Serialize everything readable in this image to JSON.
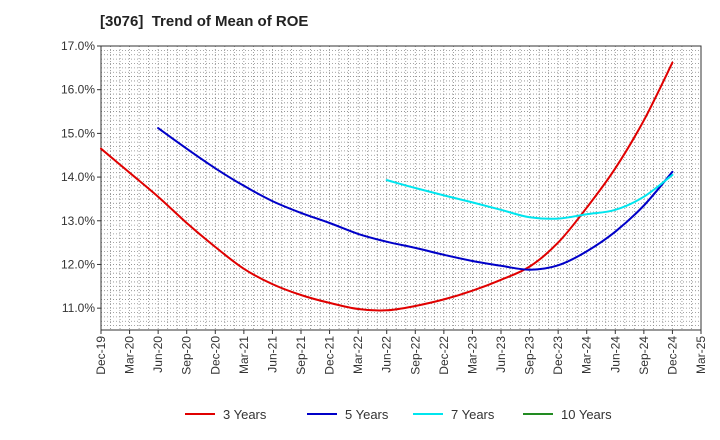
{
  "title": "[3076]  Trend of Mean of ROE",
  "chart_data": {
    "type": "line",
    "title": "[3076]  Trend of Mean of ROE",
    "xlabel": "",
    "ylabel": "",
    "x_tick_labels": [
      "Dec-19",
      "Mar-20",
      "Jun-20",
      "Sep-20",
      "Dec-20",
      "Mar-21",
      "Jun-21",
      "Sep-21",
      "Dec-21",
      "Mar-22",
      "Jun-22",
      "Sep-22",
      "Dec-22",
      "Mar-23",
      "Jun-23",
      "Sep-23",
      "Dec-23",
      "Mar-24",
      "Jun-24",
      "Sep-24",
      "Dec-24",
      "Mar-25"
    ],
    "y_ticks": [
      11.0,
      12.0,
      13.0,
      14.0,
      15.0,
      16.0,
      17.0
    ],
    "y_tick_labels": [
      "11.0%",
      "12.0%",
      "13.0%",
      "14.0%",
      "15.0%",
      "16.0%",
      "17.0%"
    ],
    "ylim": [
      10.5,
      17.0
    ],
    "grid": true,
    "legend_position": "bottom",
    "series": [
      {
        "name": "3 Years",
        "color": "#e00000",
        "points": [
          [
            "Dec-19",
            14.65
          ],
          [
            "Mar-20",
            14.1
          ],
          [
            "Jun-20",
            13.55
          ],
          [
            "Sep-20",
            12.95
          ],
          [
            "Dec-20",
            12.4
          ],
          [
            "Mar-21",
            11.9
          ],
          [
            "Jun-21",
            11.55
          ],
          [
            "Sep-21",
            11.3
          ],
          [
            "Dec-21",
            11.12
          ],
          [
            "Mar-22",
            10.98
          ],
          [
            "Jun-22",
            10.95
          ],
          [
            "Sep-22",
            11.05
          ],
          [
            "Dec-22",
            11.2
          ],
          [
            "Mar-23",
            11.4
          ],
          [
            "Jun-23",
            11.65
          ],
          [
            "Sep-23",
            11.95
          ],
          [
            "Dec-23",
            12.5
          ],
          [
            "Mar-24",
            13.3
          ],
          [
            "Jun-24",
            14.2
          ],
          [
            "Sep-24",
            15.3
          ],
          [
            "Dec-24",
            16.62
          ]
        ]
      },
      {
        "name": "5 Years",
        "color": "#0000c8",
        "points": [
          [
            "Jun-20",
            15.12
          ],
          [
            "Sep-20",
            14.65
          ],
          [
            "Dec-20",
            14.2
          ],
          [
            "Mar-21",
            13.8
          ],
          [
            "Jun-21",
            13.45
          ],
          [
            "Sep-21",
            13.18
          ],
          [
            "Dec-21",
            12.95
          ],
          [
            "Mar-22",
            12.7
          ],
          [
            "Jun-22",
            12.52
          ],
          [
            "Sep-22",
            12.38
          ],
          [
            "Dec-22",
            12.22
          ],
          [
            "Mar-23",
            12.08
          ],
          [
            "Jun-23",
            11.97
          ],
          [
            "Sep-23",
            11.88
          ],
          [
            "Dec-23",
            11.98
          ],
          [
            "Mar-24",
            12.3
          ],
          [
            "Jun-24",
            12.75
          ],
          [
            "Sep-24",
            13.35
          ],
          [
            "Dec-24",
            14.12
          ]
        ]
      },
      {
        "name": "7 Years",
        "color": "#00e5ee",
        "points": [
          [
            "Jun-22",
            13.93
          ],
          [
            "Sep-22",
            13.75
          ],
          [
            "Dec-22",
            13.58
          ],
          [
            "Mar-23",
            13.42
          ],
          [
            "Jun-23",
            13.25
          ],
          [
            "Sep-23",
            13.08
          ],
          [
            "Dec-23",
            13.05
          ],
          [
            "Mar-24",
            13.15
          ],
          [
            "Jun-24",
            13.25
          ],
          [
            "Sep-24",
            13.55
          ],
          [
            "Dec-24",
            14.05
          ]
        ]
      },
      {
        "name": "10 Years",
        "color": "#228b22",
        "points": []
      }
    ]
  }
}
